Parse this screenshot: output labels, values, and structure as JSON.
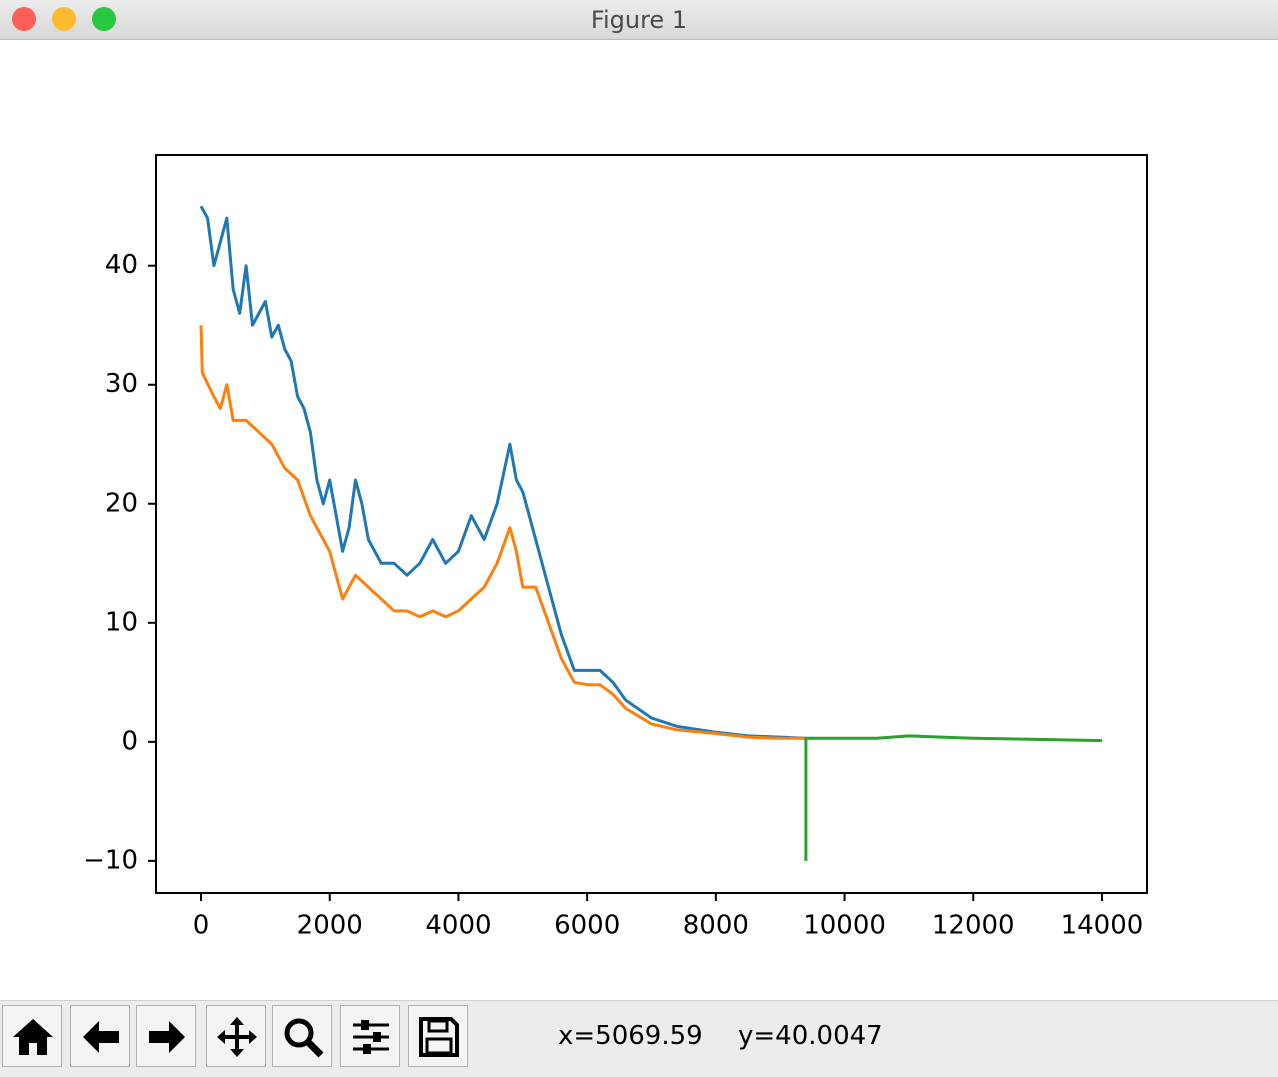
{
  "window": {
    "title": "Figure 1"
  },
  "chart_data": {
    "type": "line",
    "xlim": [
      -700,
      14700
    ],
    "ylim": [
      -12.7,
      49.3
    ],
    "xticks": [
      0,
      2000,
      4000,
      6000,
      8000,
      10000,
      12000,
      14000
    ],
    "yticks": [
      {
        "value": -10,
        "label": "−10"
      },
      0,
      10,
      20,
      30,
      40
    ],
    "grid": false,
    "series": [
      {
        "color": "#1f77b4",
        "x": [
          0,
          100,
          200,
          300,
          400,
          500,
          600,
          700,
          800,
          1000,
          1100,
          1200,
          1300,
          1400,
          1500,
          1600,
          1700,
          1800,
          1900,
          2000,
          2100,
          2200,
          2300,
          2400,
          2500,
          2600,
          2800,
          3000,
          3200,
          3400,
          3600,
          3800,
          4000,
          4200,
          4400,
          4600,
          4800,
          4900,
          5000,
          5200,
          5400,
          5600,
          5800,
          6000,
          6200,
          6400,
          6600,
          7000,
          7400,
          8000,
          8500,
          9000,
          9400
        ],
        "values": [
          45,
          44,
          40,
          42,
          44,
          38,
          36,
          40,
          35,
          37,
          34,
          35,
          33,
          32,
          29,
          28,
          26,
          22,
          20,
          22,
          19,
          16,
          18,
          22,
          20,
          17,
          15,
          15,
          14,
          15,
          17,
          15,
          16,
          19,
          17,
          20,
          25,
          22,
          21,
          17,
          13,
          9,
          6,
          6,
          6,
          5,
          3.5,
          2,
          1.3,
          0.8,
          0.5,
          0.4,
          0.3
        ]
      },
      {
        "color": "#ff7f0e",
        "x": [
          0,
          20,
          200,
          300,
          400,
          500,
          700,
          900,
          1100,
          1300,
          1500,
          1700,
          1900,
          2000,
          2200,
          2400,
          2600,
          2800,
          3000,
          3200,
          3400,
          3600,
          3800,
          4000,
          4200,
          4400,
          4600,
          4800,
          4900,
          5000,
          5200,
          5400,
          5600,
          5800,
          6000,
          6200,
          6400,
          6600,
          7000,
          7400,
          8000,
          8500,
          9000,
          9400
        ],
        "values": [
          35,
          31,
          29,
          28,
          30,
          27,
          27,
          26,
          25,
          23,
          22,
          19,
          17,
          16,
          12,
          14,
          13,
          12,
          11,
          11,
          10.5,
          11,
          10.5,
          11,
          12,
          13,
          15,
          18,
          16,
          13,
          13,
          10,
          7,
          5,
          4.8,
          4.8,
          4,
          2.8,
          1.5,
          1,
          0.7,
          0.4,
          0.3,
          0.3
        ]
      },
      {
        "color": "#2ca02c",
        "x": [
          9400,
          9400,
          10000,
          10500,
          11000,
          11500,
          12000,
          13000,
          14000
        ],
        "values": [
          -10,
          0.3,
          0.3,
          0.3,
          0.5,
          0.4,
          0.3,
          0.2,
          0.1
        ]
      }
    ]
  },
  "status": {
    "x": "x=5069.59",
    "y": "y=40.0047"
  }
}
